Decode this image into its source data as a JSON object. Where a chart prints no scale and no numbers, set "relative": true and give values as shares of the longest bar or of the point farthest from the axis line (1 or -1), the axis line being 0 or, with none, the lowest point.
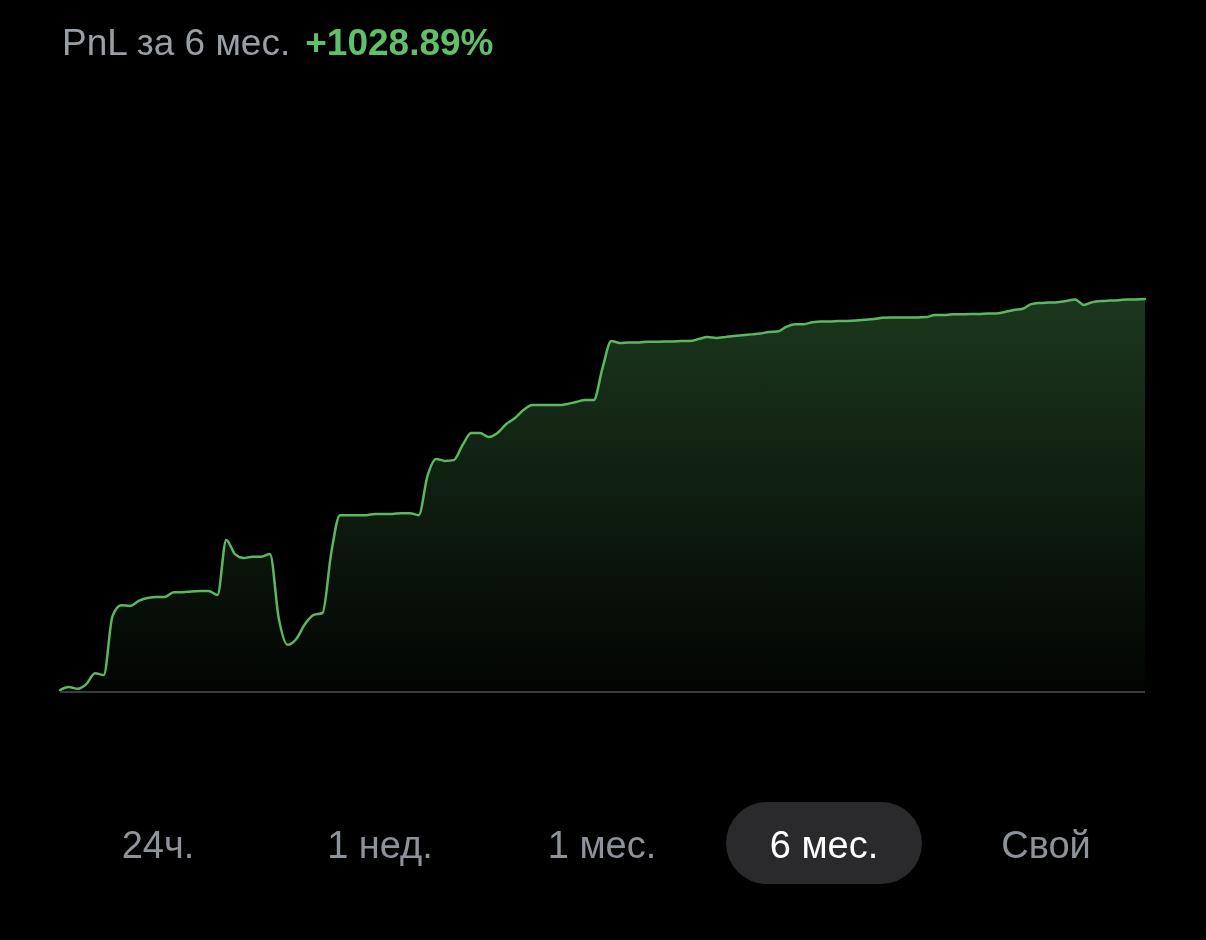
{
  "chart_data": {
    "type": "area",
    "title": "PnL за 6 мес.",
    "subtitle": "+1028.89%",
    "relative": true,
    "categories": [
      null,
      null,
      null,
      null,
      null,
      null,
      null,
      null,
      null,
      null,
      null,
      null,
      null,
      null,
      null,
      null,
      null,
      null,
      null,
      null,
      null,
      null,
      null,
      null,
      null,
      null,
      null,
      null,
      null,
      null,
      null,
      null,
      null,
      null,
      null,
      null,
      null,
      null,
      null,
      null,
      null,
      null,
      null,
      null,
      null,
      null,
      null,
      null,
      null,
      null,
      null,
      null,
      null,
      null,
      null,
      null,
      null,
      null,
      null,
      null,
      null,
      null,
      null,
      null,
      null,
      null,
      null,
      null,
      null,
      null,
      null,
      null,
      null,
      null,
      null,
      null,
      null,
      null,
      null,
      null,
      null,
      null,
      null,
      null,
      null,
      null,
      null,
      null,
      null,
      null,
      null,
      null,
      null,
      null,
      null,
      null,
      null,
      null,
      null,
      null,
      null,
      null,
      null,
      null,
      null,
      null,
      null,
      null,
      null,
      null,
      null,
      null,
      null,
      null,
      null,
      null,
      null,
      null,
      null,
      null,
      null,
      null,
      null,
      null,
      null
    ],
    "series": [
      {
        "color": "#5cb860",
        "values": [
          0.005,
          0.013,
          0.008,
          0.02,
          0.048,
          0.043,
          0.193,
          0.221,
          0.219,
          0.232,
          0.239,
          0.242,
          0.242,
          0.254,
          0.254,
          0.256,
          0.257,
          0.257,
          0.247,
          0.387,
          0.351,
          0.341,
          0.344,
          0.344,
          0.351,
          0.188,
          0.12,
          0.135,
          0.173,
          0.196,
          0.201,
          0.354,
          0.45,
          0.45,
          0.45,
          0.45,
          0.453,
          0.453,
          0.453,
          0.455,
          0.455,
          0.45,
          0.55,
          0.593,
          0.588,
          0.59,
          0.628,
          0.659,
          0.659,
          0.649,
          0.659,
          0.682,
          0.697,
          0.718,
          0.73,
          0.73,
          0.73,
          0.73,
          0.733,
          0.738,
          0.743,
          0.743,
          0.824,
          0.893,
          0.888,
          0.889,
          0.889,
          0.891,
          0.891,
          0.892,
          0.892,
          0.893,
          0.893,
          0.898,
          0.903,
          0.901,
          0.903,
          0.906,
          0.908,
          0.91,
          0.912,
          0.916,
          0.917,
          0.929,
          0.936,
          0.936,
          0.941,
          0.943,
          0.943,
          0.944,
          0.944,
          0.945,
          0.947,
          0.949,
          0.952,
          0.953,
          0.953,
          0.953,
          0.953,
          0.954,
          0.959,
          0.959,
          0.961,
          0.961,
          0.962,
          0.962,
          0.963,
          0.963,
          0.967,
          0.972,
          0.975,
          0.987,
          0.99,
          0.991,
          0.992,
          0.995,
          0.999,
          0.985,
          0.992,
          0.995,
          0.996,
          0.997,
          0.999,
          0.999,
          1
        ]
      }
    ],
    "annotations": [
      "24ч.",
      "1 нед.",
      "1 мес.",
      "6 мес.",
      "Свой"
    ]
  }
}
